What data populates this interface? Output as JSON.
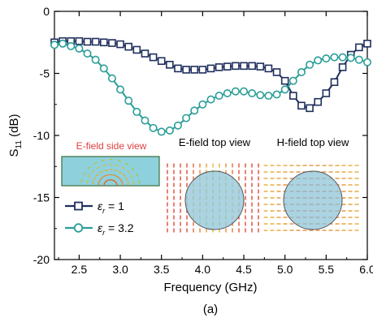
{
  "chart_data": {
    "type": "line",
    "caption": "(a)",
    "xlabel": "Frequency (GHz)",
    "ylabel_main": "S",
    "ylabel_sub": "11",
    "ylabel_unit": " (dB)",
    "xlim": [
      2.2,
      6.0
    ],
    "ylim": [
      -20,
      0
    ],
    "xticks": [
      2.5,
      3.0,
      3.5,
      4.0,
      4.5,
      5.0,
      5.5,
      6.0
    ],
    "yticks": [
      0,
      -5,
      -10,
      -15,
      -20
    ],
    "grid": false,
    "legend_placement": "lower-left",
    "series": [
      {
        "name_symbol": "ε",
        "name_sub": "r",
        "name_value": " = 1",
        "color": "#1f2f5c",
        "marker": "square",
        "x": [
          2.2,
          2.3,
          2.4,
          2.5,
          2.6,
          2.7,
          2.8,
          2.9,
          3.0,
          3.1,
          3.2,
          3.3,
          3.4,
          3.5,
          3.6,
          3.7,
          3.8,
          3.9,
          4.0,
          4.1,
          4.2,
          4.3,
          4.4,
          4.5,
          4.6,
          4.7,
          4.8,
          4.9,
          5.0,
          5.1,
          5.2,
          5.3,
          5.4,
          5.5,
          5.6,
          5.7,
          5.8,
          5.9,
          6.0
        ],
        "y": [
          -2.5,
          -2.4,
          -2.4,
          -2.4,
          -2.45,
          -2.45,
          -2.5,
          -2.55,
          -2.65,
          -2.85,
          -3.1,
          -3.4,
          -3.7,
          -4.0,
          -4.3,
          -4.6,
          -4.7,
          -4.7,
          -4.7,
          -4.6,
          -4.5,
          -4.45,
          -4.4,
          -4.4,
          -4.4,
          -4.45,
          -4.6,
          -4.9,
          -5.6,
          -6.8,
          -7.6,
          -7.8,
          -7.3,
          -6.6,
          -5.7,
          -4.5,
          -3.5,
          -2.9,
          -2.6
        ]
      },
      {
        "name_symbol": "ε",
        "name_sub": "r",
        "name_value": " = 3.2",
        "color": "#2a9e98",
        "marker": "circle",
        "x": [
          2.2,
          2.3,
          2.4,
          2.5,
          2.6,
          2.7,
          2.8,
          2.9,
          3.0,
          3.1,
          3.2,
          3.3,
          3.4,
          3.5,
          3.6,
          3.7,
          3.8,
          3.9,
          4.0,
          4.1,
          4.2,
          4.3,
          4.4,
          4.5,
          4.6,
          4.7,
          4.8,
          4.9,
          5.0,
          5.1,
          5.2,
          5.3,
          5.4,
          5.5,
          5.6,
          5.7,
          5.8,
          5.9,
          6.0
        ],
        "y": [
          -2.7,
          -2.6,
          -2.8,
          -3.0,
          -3.4,
          -3.9,
          -4.6,
          -5.4,
          -6.3,
          -7.2,
          -8.1,
          -8.8,
          -9.4,
          -9.7,
          -9.6,
          -9.2,
          -8.6,
          -8.0,
          -7.5,
          -7.1,
          -6.8,
          -6.6,
          -6.45,
          -6.45,
          -6.6,
          -6.75,
          -6.8,
          -6.7,
          -6.3,
          -5.6,
          -4.9,
          -4.3,
          -3.95,
          -3.8,
          -3.7,
          -3.7,
          -3.75,
          -3.9,
          -4.1
        ]
      }
    ],
    "insets": [
      {
        "title": "E-field side view",
        "title_color": "#e04040"
      },
      {
        "title": "E-field top view",
        "title_color": "#000000"
      },
      {
        "title": "H-field top view",
        "title_color": "#000000"
      }
    ]
  }
}
